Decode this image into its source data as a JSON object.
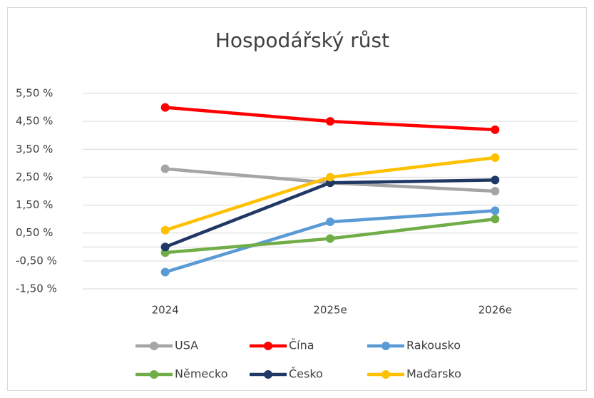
{
  "chart_data": {
    "type": "line",
    "title": "Hospodářský růst",
    "categories": [
      "2024",
      "2025e",
      "2026e"
    ],
    "series": [
      {
        "name": "USA",
        "color": "#a5a5a5",
        "values": [
          2.8,
          2.3,
          2.0
        ]
      },
      {
        "name": "Čína",
        "color": "#ff0000",
        "values": [
          5.0,
          4.5,
          4.2
        ]
      },
      {
        "name": "Rakousko",
        "color": "#5b9bd5",
        "values": [
          -0.9,
          0.9,
          1.3
        ]
      },
      {
        "name": "Německo",
        "color": "#70ad47",
        "values": [
          -0.2,
          0.3,
          1.0
        ]
      },
      {
        "name": "Česko",
        "color": "#203864",
        "values": [
          0.0,
          2.3,
          2.4
        ]
      },
      {
        "name": "Maďarsko",
        "color": "#ffc000",
        "values": [
          0.6,
          2.5,
          3.2
        ]
      }
    ],
    "ylim": [
      -1.5,
      5.5
    ],
    "yticks": [
      {
        "value": -1.5,
        "label": "-1,50 %"
      },
      {
        "value": -0.5,
        "label": "-0,50 %"
      },
      {
        "value": 0.5,
        "label": "0,50 %"
      },
      {
        "value": 1.5,
        "label": "1,50 %"
      },
      {
        "value": 2.5,
        "label": "2,50 %"
      },
      {
        "value": 3.5,
        "label": "3,50 %"
      },
      {
        "value": 4.5,
        "label": "4,50 %"
      },
      {
        "value": 5.5,
        "label": "5,50 %"
      }
    ],
    "grid": true,
    "legend": "bottom"
  }
}
